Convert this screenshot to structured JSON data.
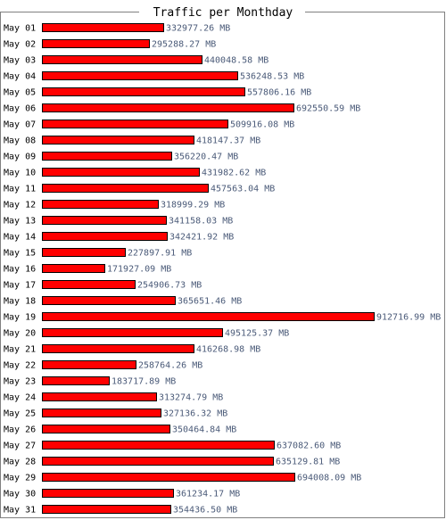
{
  "chart_data": {
    "type": "bar",
    "orientation": "horizontal",
    "title": "Traffic per Monthday",
    "unit": "MB",
    "bar_color": "#ff0000",
    "value_label_color": "#4a5a78",
    "categories": [
      "May 01",
      "May 02",
      "May 03",
      "May 04",
      "May 05",
      "May 06",
      "May 07",
      "May 08",
      "May 09",
      "May 10",
      "May 11",
      "May 12",
      "May 13",
      "May 14",
      "May 15",
      "May 16",
      "May 17",
      "May 18",
      "May 19",
      "May 20",
      "May 21",
      "May 22",
      "May 23",
      "May 24",
      "May 25",
      "May 26",
      "May 27",
      "May 28",
      "May 29",
      "May 30",
      "May 31"
    ],
    "values": [
      332977.26,
      295288.27,
      440048.58,
      536248.53,
      557806.16,
      692550.59,
      509916.08,
      418147.37,
      356220.47,
      431982.62,
      457563.04,
      318999.29,
      341158.03,
      342421.92,
      227897.91,
      171927.09,
      254906.73,
      365651.46,
      912716.99,
      495125.37,
      416268.98,
      258764.26,
      183717.89,
      313274.79,
      327136.32,
      350464.84,
      637082.6,
      635129.81,
      694008.09,
      361234.17,
      354436.5
    ],
    "value_labels": [
      "332977.26 MB",
      "295288.27 MB",
      "440048.58 MB",
      "536248.53 MB",
      "557806.16 MB",
      "692550.59 MB",
      "509916.08 MB",
      "418147.37 MB",
      "356220.47 MB",
      "431982.62 MB",
      "457563.04 MB",
      "318999.29 MB",
      "341158.03 MB",
      "342421.92 MB",
      "227897.91 MB",
      "171927.09 MB",
      "254906.73 MB",
      "365651.46 MB",
      "912716.99 MB",
      "495125.37 MB",
      "416268.98 MB",
      "258764.26 MB",
      "183717.89 MB",
      "313274.79 MB",
      "327136.32 MB",
      "350464.84 MB",
      "637082.60 MB",
      "635129.81 MB",
      "694008.09 MB",
      "361234.17 MB",
      "354436.50 MB"
    ]
  }
}
